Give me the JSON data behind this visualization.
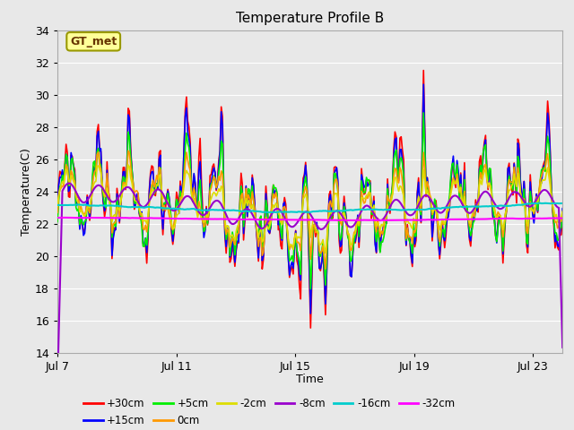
{
  "title": "Temperature Profile B",
  "xlabel": "Time",
  "ylabel": "Temperature(C)",
  "xlim": [
    0,
    17
  ],
  "ylim": [
    14,
    34
  ],
  "yticks": [
    14,
    16,
    18,
    20,
    22,
    24,
    26,
    28,
    30,
    32,
    34
  ],
  "xtick_positions": [
    0,
    4,
    8,
    12,
    16
  ],
  "xtick_labels": [
    "Jul 7",
    "Jul 11",
    "Jul 15",
    "Jul 19",
    "Jul 23"
  ],
  "background_color": "#e8e8e8",
  "plot_bg_color": "#e8e8e8",
  "grid_color": "#ffffff",
  "annotation_text": "GT_met",
  "annotation_bg": "#ffff99",
  "annotation_border": "#999900",
  "legend_entries": [
    {
      "label": "+30cm",
      "color": "#ff0000",
      "lw": 1.2
    },
    {
      "label": "+15cm",
      "color": "#0000ff",
      "lw": 1.2
    },
    {
      "label": "+5cm",
      "color": "#00ee00",
      "lw": 1.2
    },
    {
      "label": "0cm",
      "color": "#ff9900",
      "lw": 1.2
    },
    {
      "label": "-2cm",
      "color": "#dddd00",
      "lw": 1.2
    },
    {
      "label": "-8cm",
      "color": "#9900cc",
      "lw": 1.5
    },
    {
      "label": "-16cm",
      "color": "#00cccc",
      "lw": 1.5
    },
    {
      "label": "-32cm",
      "color": "#ff00ff",
      "lw": 1.5
    }
  ],
  "n_points": 408,
  "seed": 99,
  "days": 17
}
